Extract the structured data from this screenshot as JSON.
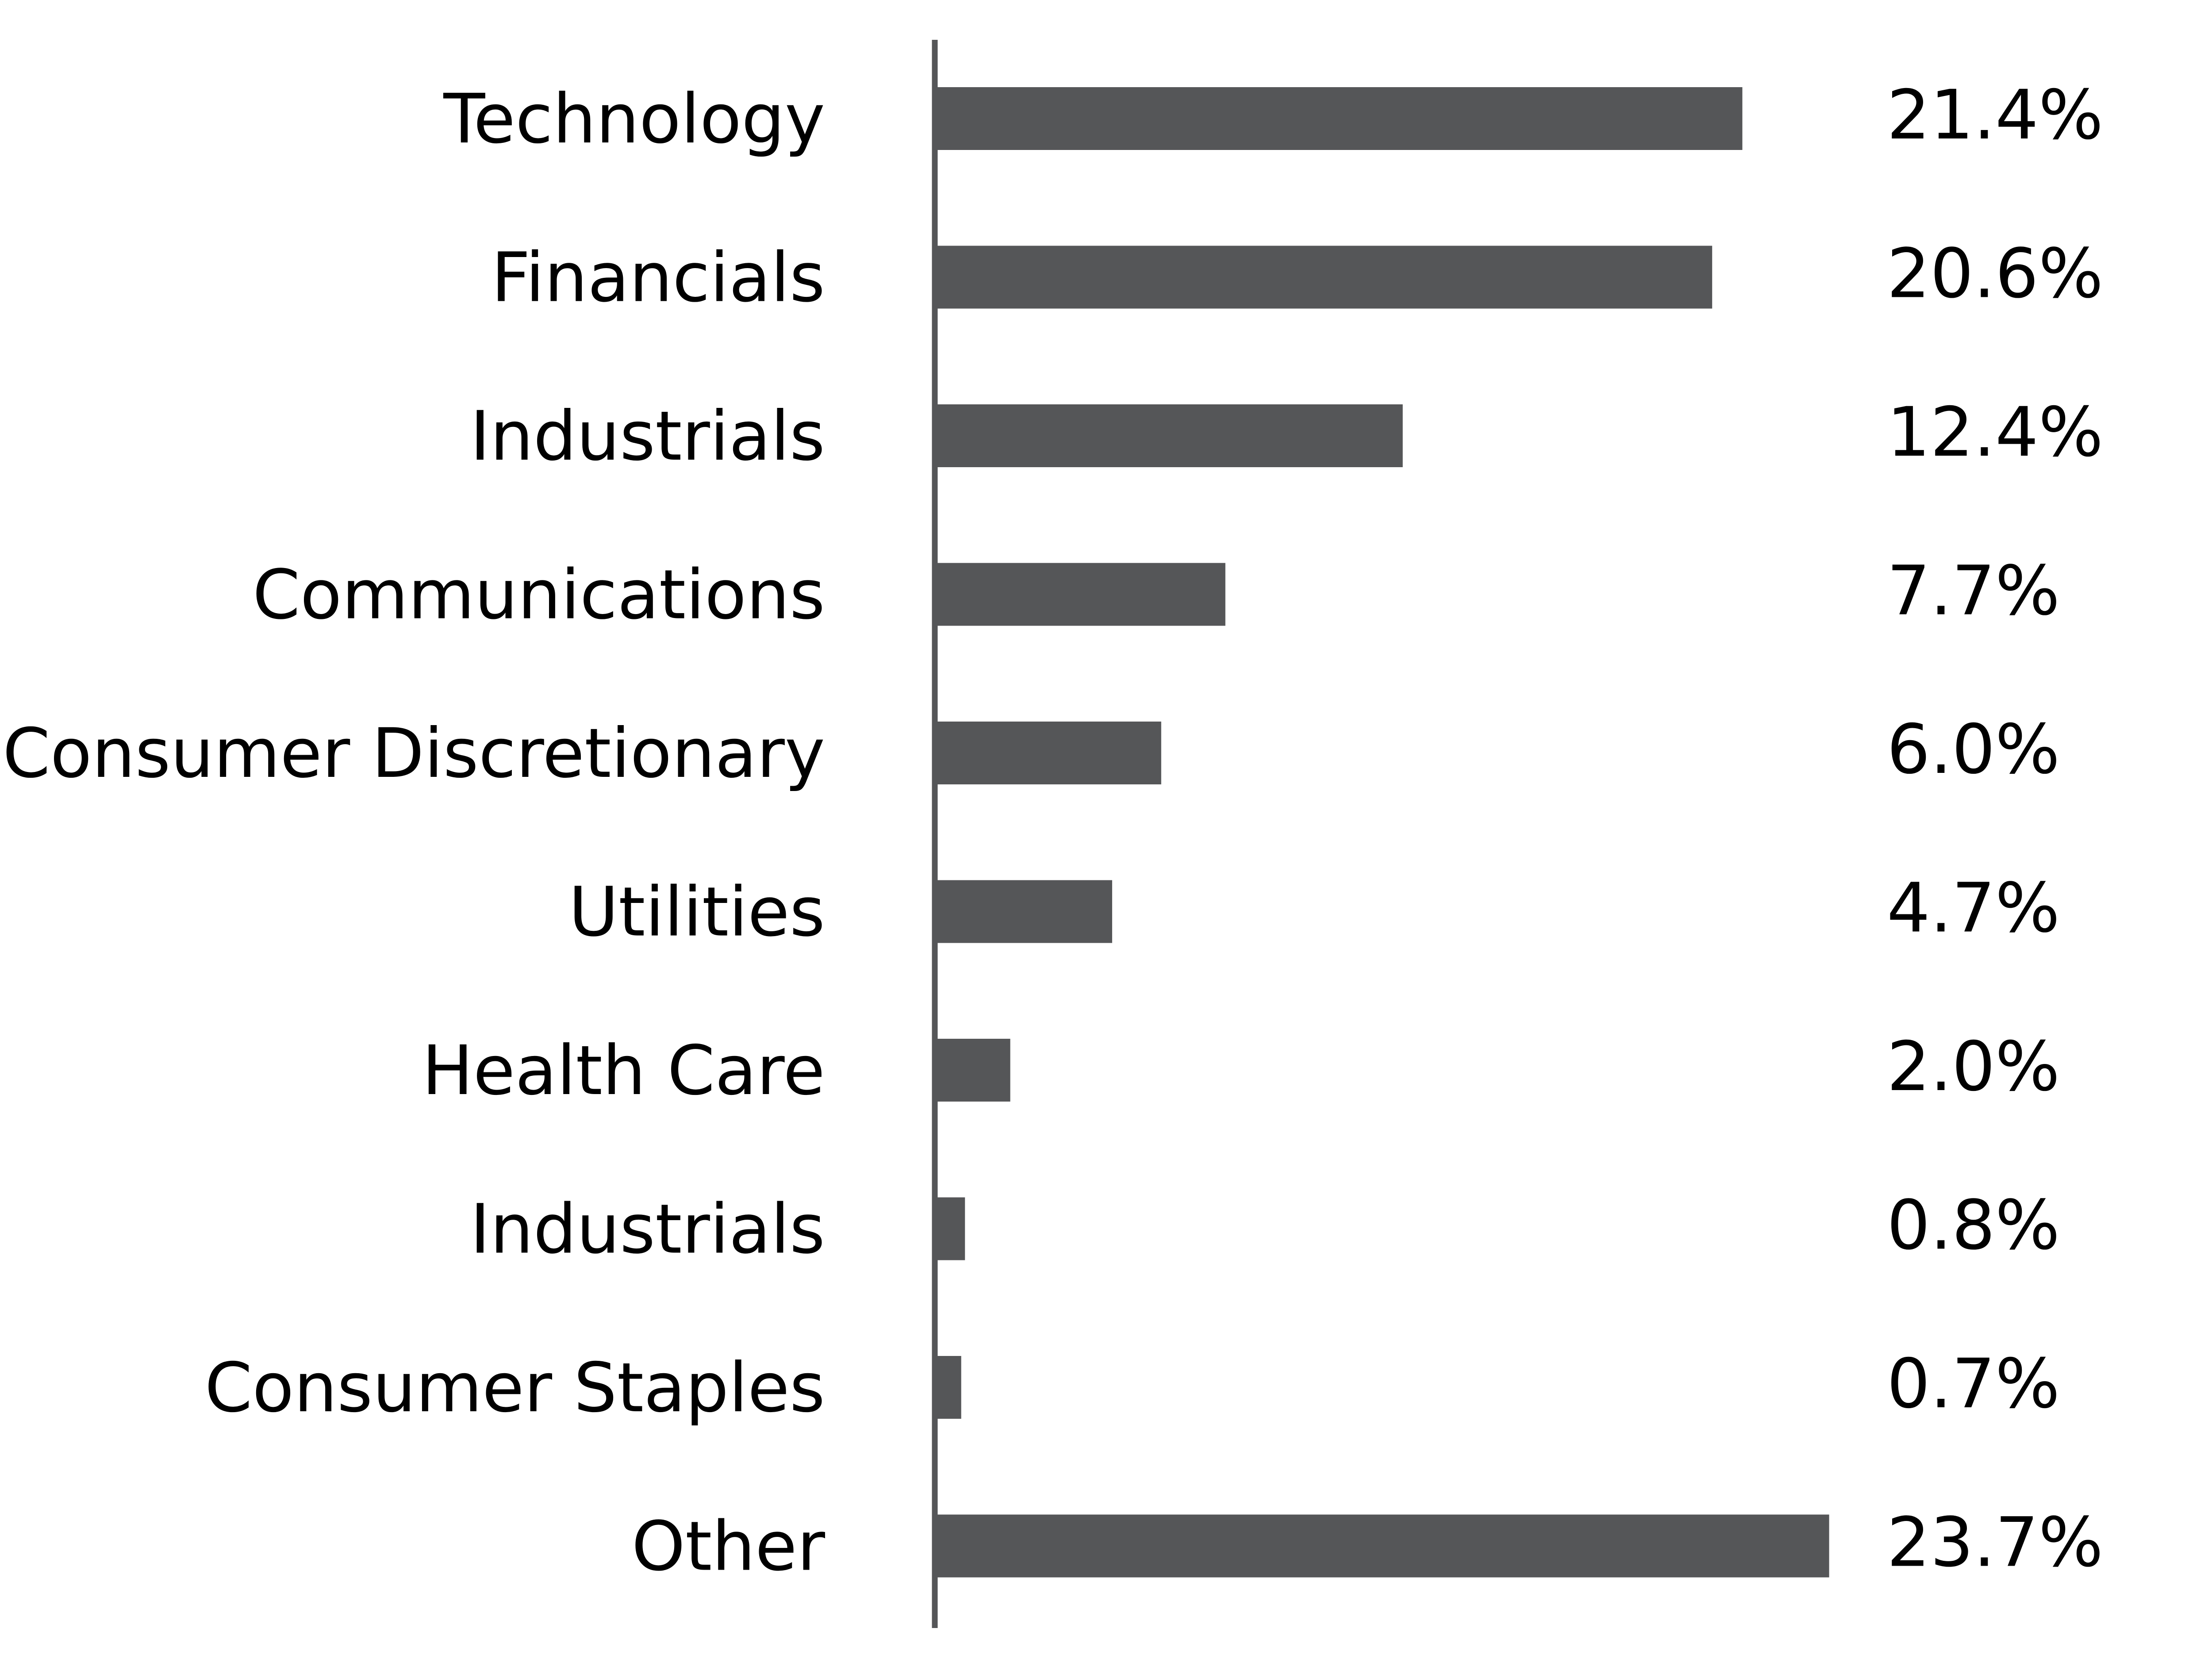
{
  "chart_data": {
    "type": "bar",
    "orientation": "horizontal",
    "categories": [
      "Technology",
      "Financials",
      "Industrials",
      "Communications",
      "Consumer Discretionary",
      "Utilities",
      "Health Care",
      "Industrials ",
      "Consumer Staples",
      "Other"
    ],
    "values": [
      21.4,
      20.6,
      12.4,
      7.7,
      6.0,
      4.7,
      2.0,
      0.8,
      0.7,
      23.7
    ],
    "value_labels": [
      "21.4%",
      "20.6%",
      "12.4%",
      "7.7%",
      "6.0%",
      "4.7%",
      "2.0%",
      "0.8%",
      "0.7%",
      "23.7%"
    ],
    "xlim": [
      0,
      30
    ],
    "grid": false,
    "legend": "none",
    "colors": {
      "bar": "#555658",
      "axis": "#555658",
      "text": "#000000"
    }
  }
}
